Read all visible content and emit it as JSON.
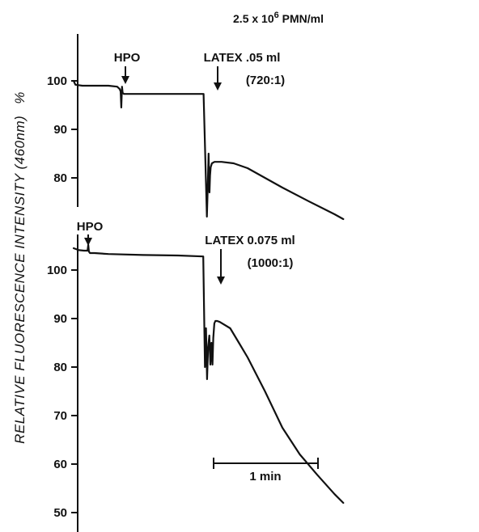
{
  "colors": {
    "ink": "#111111",
    "background": "#ffffff"
  },
  "title": {
    "prefix": "2.5 x 10",
    "exponent": "6",
    "suffix": " PMN/ml"
  },
  "ylabel": {
    "text": "RELATIVE FLUORESCENCE INTENSITY (460nm)",
    "unit": "%"
  },
  "scalebar": {
    "label": "1 min",
    "duration_s": 60
  },
  "chart_data": [
    {
      "type": "line",
      "panel": "top",
      "y_ticks": [
        "100",
        "90",
        "80"
      ],
      "yticks": [
        100,
        90,
        80
      ],
      "ylim": [
        68,
        109
      ],
      "xlim_s": [
        0,
        155
      ],
      "annotations": [
        {
          "text": "HPO",
          "time_s": 27.7
        },
        {
          "text": "LATEX .05 ml",
          "time_s": 80
        },
        {
          "text": "(720:1)",
          "time_s": 93
        }
      ],
      "series": [
        {
          "x": [
            0,
            1,
            5,
            10,
            20,
            25,
            26.5,
            27,
            27.4,
            27.8,
            28.2,
            29,
            35,
            45,
            60,
            74.7,
            76.6,
            77.0,
            77.3,
            77.6,
            77.9,
            78.1,
            78.4,
            78.8,
            79.5,
            81,
            85,
            92,
            100,
            110,
            120,
            135,
            150,
            155
          ],
          "y": [
            100,
            99.2,
            99,
            99,
            99,
            98.8,
            98.3,
            97.8,
            94.5,
            98.8,
            97.5,
            97.3,
            97.3,
            97.3,
            97.3,
            97.3,
            72.0,
            76.5,
            81.0,
            85.0,
            79.0,
            77.0,
            80.5,
            82.2,
            83.0,
            83.3,
            83.3,
            83.0,
            82.0,
            80.0,
            78.0,
            75.2,
            72.5,
            71.5
          ]
        }
      ]
    },
    {
      "type": "line",
      "panel": "bottom",
      "y_ticks": [
        "100",
        "90",
        "80",
        "70",
        "60",
        "50"
      ],
      "yticks": [
        100,
        90,
        80,
        70,
        60,
        50
      ],
      "ylim": [
        46,
        106
      ],
      "xlim_s": [
        0,
        155
      ],
      "annotations": [
        {
          "text": "HPO",
          "time_s": 8.3
        },
        {
          "text": "LATEX 0.075 ml",
          "time_s": 83
        },
        {
          "text": "(1000:1)",
          "time_s": 95
        }
      ],
      "series": [
        {
          "x": [
            0,
            3,
            6,
            8.0,
            8.4,
            8.8,
            9.4,
            12,
            20,
            40,
            60,
            74.5,
            75.5,
            76.1,
            76.7,
            77.3,
            78.0,
            78.6,
            79.2,
            79.8,
            80.3,
            80.9,
            81.5,
            82.5,
            84,
            90,
            95,
            100,
            110,
            120,
            130,
            140,
            150,
            155
          ],
          "y": [
            104.5,
            104.1,
            104,
            104.0,
            105.2,
            103.8,
            103.5,
            103.5,
            103.3,
            103.1,
            103.0,
            102.8,
            80.0,
            88.0,
            77.5,
            84.0,
            86.5,
            80.5,
            85.0,
            80.5,
            86.0,
            89.0,
            89.5,
            89.5,
            89.3,
            88.0,
            85.0,
            82.0,
            75.0,
            67.5,
            62.0,
            57.8,
            53.8,
            52.0
          ]
        }
      ]
    }
  ]
}
